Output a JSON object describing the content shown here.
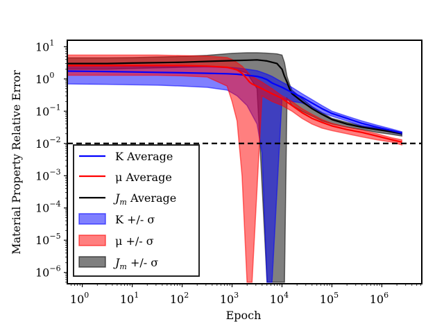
{
  "chart_data": {
    "type": "line",
    "title": "",
    "xlabel": "Epoch",
    "ylabel": "Material Property Relative Error",
    "xscale": "log",
    "yscale": "log",
    "xlim_exp": [
      -0.3,
      6.8
    ],
    "ylim_exp": [
      -6.35,
      1.2
    ],
    "x_ticks": [
      {
        "base": "10",
        "exp": "0",
        "value": 1
      },
      {
        "base": "10",
        "exp": "1",
        "value": 10
      },
      {
        "base": "10",
        "exp": "2",
        "value": 100
      },
      {
        "base": "10",
        "exp": "3",
        "value": 1000
      },
      {
        "base": "10",
        "exp": "4",
        "value": 10000
      },
      {
        "base": "10",
        "exp": "5",
        "value": 100000
      },
      {
        "base": "10",
        "exp": "6",
        "value": 1000000
      }
    ],
    "y_ticks": [
      {
        "base": "10",
        "exp": "1",
        "value": 10
      },
      {
        "base": "10",
        "exp": "0",
        "value": 1
      },
      {
        "base": "10",
        "exp": "−1",
        "value": 0.1
      },
      {
        "base": "10",
        "exp": "−2",
        "value": 0.01
      },
      {
        "base": "10",
        "exp": "−3",
        "value": 0.001
      },
      {
        "base": "10",
        "exp": "−4",
        "value": 0.0001
      },
      {
        "base": "10",
        "exp": "−5",
        "value": 1e-05
      },
      {
        "base": "10",
        "exp": "−6",
        "value": 1e-06
      }
    ],
    "reference_line": {
      "y": 0.01,
      "style": "dashed",
      "color": "#000000"
    },
    "legend": {
      "position": "lower-left",
      "entries": [
        {
          "label_main": "K Average",
          "type": "line",
          "color": "#0000ff"
        },
        {
          "label_main": "μ Average",
          "type": "line",
          "color": "#ff0000"
        },
        {
          "label_main": "J",
          "label_sub": "m",
          "label_rest": " Average",
          "type": "line",
          "color": "#000000"
        },
        {
          "label_main": "K +/- σ",
          "type": "band",
          "color": "#0000ff"
        },
        {
          "label_main": "μ +/- σ",
          "type": "band",
          "color": "#ff0000"
        },
        {
          "label_main": "J",
          "label_sub": "m",
          "label_rest": " +/- σ",
          "type": "band",
          "color": "#000000"
        }
      ]
    },
    "series": [
      {
        "name": "K",
        "color": "#0000ff",
        "band_color": "#0000ff",
        "band_opacity": 0.5,
        "log_x": [
          -0.3,
          0.5,
          1,
          1.5,
          2,
          2.5,
          2.9,
          3.1,
          3.3,
          3.5,
          3.6,
          3.7,
          3.8,
          4.0,
          4.2,
          4.4,
          4.6,
          4.8,
          5.0,
          5.3,
          5.6,
          5.9,
          6.2,
          6.4
        ],
        "mean": [
          1.75,
          1.7,
          1.65,
          1.6,
          1.55,
          1.5,
          1.45,
          1.4,
          1.3,
          1.2,
          1.1,
          0.95,
          0.75,
          0.55,
          0.38,
          0.27,
          0.18,
          0.12,
          0.085,
          0.06,
          0.042,
          0.032,
          0.025,
          0.021
        ],
        "upper": [
          2.6,
          2.55,
          2.5,
          2.45,
          2.4,
          2.35,
          2.3,
          2.2,
          2.0,
          1.8,
          1.6,
          1.4,
          1.2,
          0.8,
          0.55,
          0.35,
          0.23,
          0.15,
          0.1,
          0.07,
          0.05,
          0.037,
          0.028,
          0.023
        ],
        "lower": [
          0.7,
          0.68,
          0.66,
          0.64,
          0.6,
          0.55,
          0.45,
          0.3,
          0.15,
          0.04,
          0.005,
          5e-07,
          5e-07,
          0.25,
          0.2,
          0.18,
          0.13,
          0.09,
          0.07,
          0.05,
          0.035,
          0.028,
          0.022,
          0.019
        ]
      },
      {
        "name": "μ",
        "color": "#ff0000",
        "band_color": "#ff0000",
        "band_opacity": 0.5,
        "log_x": [
          -0.3,
          0.5,
          1,
          1.5,
          2,
          2.5,
          2.9,
          3.0,
          3.1,
          3.2,
          3.3,
          3.35,
          3.4,
          3.6,
          3.8,
          4.0,
          4.2,
          4.4,
          4.6,
          4.8,
          5.0,
          5.3,
          5.6,
          5.9,
          6.2,
          6.4
        ],
        "mean": [
          2.6,
          2.6,
          2.6,
          2.6,
          2.6,
          2.5,
          2.3,
          2.1,
          1.9,
          1.5,
          1.0,
          0.8,
          0.7,
          0.5,
          0.35,
          0.25,
          0.15,
          0.09,
          0.06,
          0.045,
          0.035,
          0.027,
          0.022,
          0.017,
          0.013,
          0.011
        ],
        "upper": [
          5.5,
          5.5,
          5.5,
          5.5,
          5.3,
          5.1,
          4.6,
          4.0,
          3.2,
          2.5,
          1.7,
          1.4,
          1.2,
          0.8,
          0.5,
          0.3,
          0.2,
          0.12,
          0.08,
          0.055,
          0.042,
          0.032,
          0.026,
          0.02,
          0.015,
          0.013
        ],
        "lower": [
          1.3,
          1.3,
          1.3,
          1.3,
          1.25,
          1.15,
          0.6,
          0.2,
          0.05,
          0.001,
          5e-07,
          5e-07,
          5e-07,
          0.3,
          0.2,
          0.15,
          0.1,
          0.06,
          0.04,
          0.03,
          0.025,
          0.02,
          0.016,
          0.013,
          0.011,
          0.009
        ]
      },
      {
        "name": "Jm",
        "color": "#000000",
        "band_color": "#000000",
        "band_opacity": 0.5,
        "log_x": [
          -0.3,
          0.5,
          1,
          1.5,
          2,
          2.5,
          3.0,
          3.3,
          3.5,
          3.7,
          3.9,
          4.0,
          4.05,
          4.1,
          4.15,
          4.2,
          4.4,
          4.6,
          4.8,
          5.0,
          5.3,
          5.6,
          5.9,
          6.2,
          6.4
        ],
        "mean": [
          3.0,
          3.0,
          3.1,
          3.2,
          3.3,
          3.5,
          3.7,
          3.8,
          3.9,
          3.6,
          3.0,
          2.0,
          1.2,
          0.8,
          0.5,
          0.35,
          0.2,
          0.12,
          0.08,
          0.055,
          0.04,
          0.032,
          0.027,
          0.023,
          0.02
        ],
        "upper": [
          4.5,
          4.5,
          4.6,
          4.8,
          5.0,
          5.4,
          6.2,
          6.5,
          6.5,
          6.3,
          6.0,
          5.5,
          3.2,
          1.2,
          0.7,
          0.45,
          0.25,
          0.14,
          0.09,
          0.06,
          0.045,
          0.035,
          0.03,
          0.025,
          0.022
        ],
        "lower": [
          2.0,
          2.0,
          2.1,
          2.2,
          2.3,
          2.4,
          2.2,
          1.5,
          0.5,
          5e-07,
          5e-07,
          5e-07,
          5e-07,
          0.25,
          0.2,
          0.15,
          0.1,
          0.07,
          0.05,
          0.04,
          0.032,
          0.027,
          0.022,
          0.019,
          0.017
        ]
      }
    ]
  }
}
